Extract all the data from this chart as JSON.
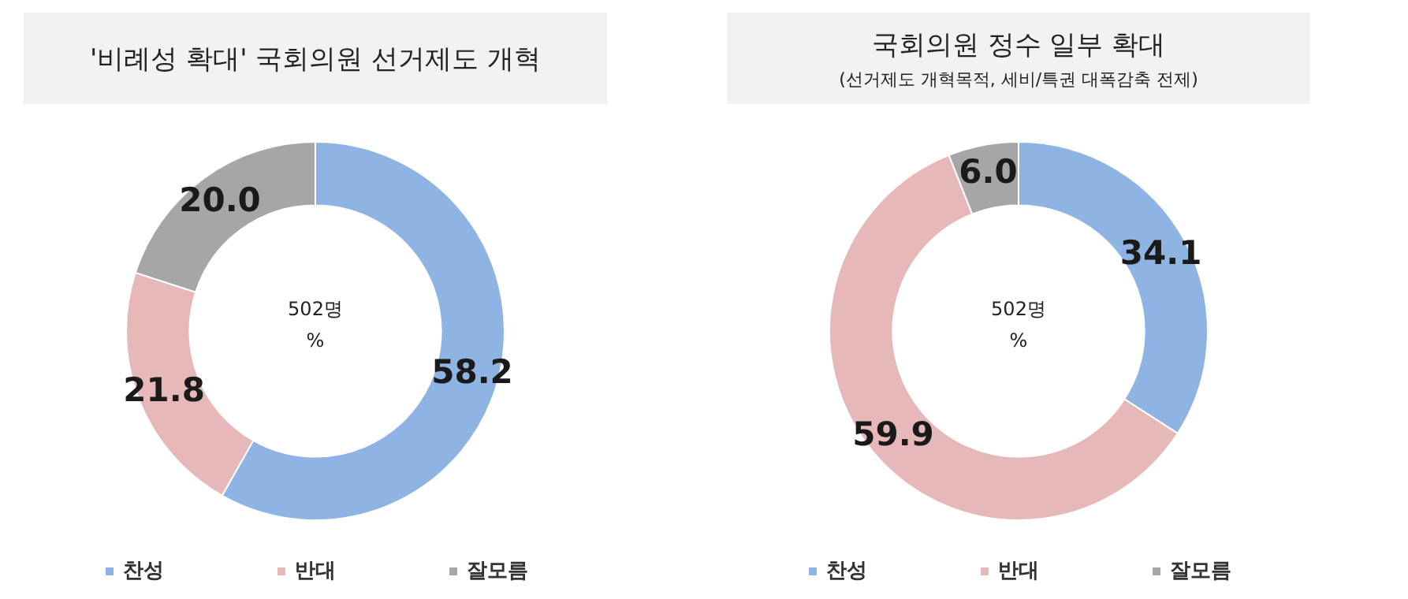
{
  "chart_data": [
    {
      "type": "donut",
      "title": "'비례성 확대' 국회의원 선거제도 개혁",
      "categories": [
        "찬성",
        "반대",
        "잘모름"
      ],
      "values": [
        58.2,
        21.8,
        20.0
      ],
      "value_labels": [
        "58.2",
        "21.8",
        "20.0"
      ],
      "colors": [
        "#8eb4e3",
        "#e6b9b8",
        "#a6a6a6"
      ],
      "annotations": [
        "502명",
        "%"
      ],
      "legend": "bottom"
    },
    {
      "type": "donut",
      "title": "국회의원 정수 일부 확대",
      "subtitle": "(선거제도 개혁목적, 세비/특권 대폭감축 전제)",
      "categories": [
        "찬성",
        "반대",
        "잘모름"
      ],
      "values": [
        34.1,
        59.9,
        6.0
      ],
      "value_labels": [
        "34.1",
        "59.9",
        "6.0"
      ],
      "colors": [
        "#8eb4e3",
        "#e6b9b8",
        "#a6a6a6"
      ],
      "annotations": [
        "502명",
        "%"
      ],
      "legend": "bottom"
    }
  ]
}
